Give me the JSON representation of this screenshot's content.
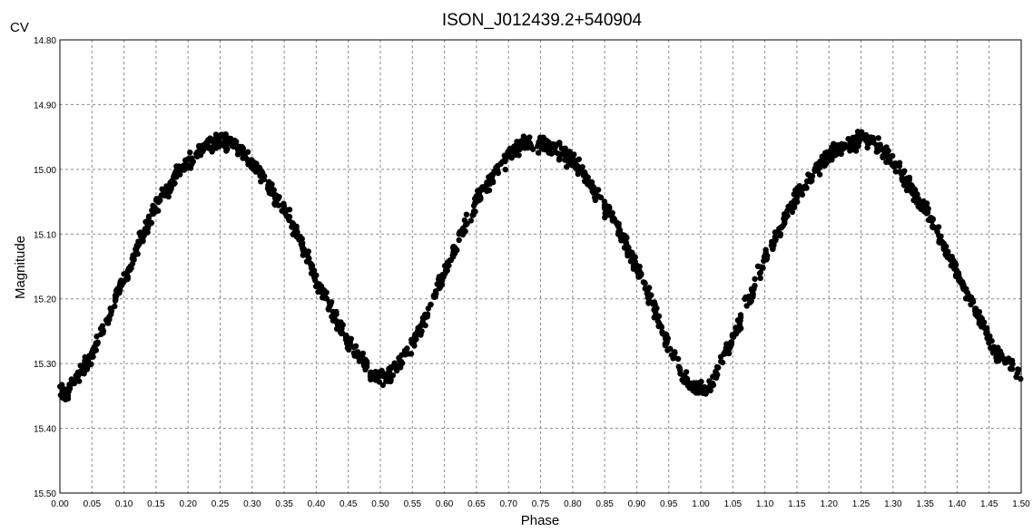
{
  "chart_data": {
    "type": "scatter",
    "title": "ISON_J012439.2+540904",
    "band_label": "CV",
    "xlabel": "Phase",
    "ylabel": "Magnitude",
    "xlim": [
      0.0,
      1.5
    ],
    "ylim": [
      14.8,
      15.5
    ],
    "y_inverted": true,
    "grid": true,
    "x_ticks": [
      "0.00",
      "0.05",
      "0.10",
      "0.15",
      "0.20",
      "0.25",
      "0.30",
      "0.35",
      "0.40",
      "0.45",
      "0.50",
      "0.55",
      "0.60",
      "0.65",
      "0.70",
      "0.75",
      "0.80",
      "0.85",
      "0.90",
      "0.95",
      "1.00",
      "1.05",
      "1.10",
      "1.15",
      "1.20",
      "1.25",
      "1.30",
      "1.35",
      "1.40",
      "1.45",
      "1.50"
    ],
    "y_ticks": [
      "14.80",
      "14.90",
      "15.00",
      "15.10",
      "15.20",
      "15.30",
      "15.40",
      "15.50"
    ],
    "marker_color": "#000000",
    "series": [
      {
        "light_curve": [
          [
            0.0,
            15.34
          ],
          [
            0.01,
            15.35
          ],
          [
            0.02,
            15.33
          ],
          [
            0.03,
            15.32
          ],
          [
            0.04,
            15.3
          ],
          [
            0.05,
            15.29
          ],
          [
            0.06,
            15.26
          ],
          [
            0.07,
            15.24
          ],
          [
            0.08,
            15.22
          ],
          [
            0.09,
            15.19
          ],
          [
            0.1,
            15.17
          ],
          [
            0.11,
            15.15
          ],
          [
            0.12,
            15.12
          ],
          [
            0.13,
            15.1
          ],
          [
            0.14,
            15.08
          ],
          [
            0.15,
            15.06
          ],
          [
            0.16,
            15.04
          ],
          [
            0.17,
            15.03
          ],
          [
            0.18,
            15.01
          ],
          [
            0.19,
            15.0
          ],
          [
            0.2,
            14.99
          ],
          [
            0.21,
            14.98
          ],
          [
            0.22,
            14.97
          ],
          [
            0.23,
            14.96
          ],
          [
            0.24,
            14.96
          ],
          [
            0.25,
            14.95
          ],
          [
            0.26,
            14.96
          ],
          [
            0.27,
            14.96
          ],
          [
            0.28,
            14.97
          ],
          [
            0.29,
            14.98
          ],
          [
            0.3,
            14.99
          ],
          [
            0.31,
            15.0
          ],
          [
            0.32,
            15.02
          ],
          [
            0.33,
            15.03
          ],
          [
            0.34,
            15.05
          ],
          [
            0.35,
            15.06
          ],
          [
            0.36,
            15.08
          ],
          [
            0.37,
            15.1
          ],
          [
            0.38,
            15.12
          ],
          [
            0.39,
            15.14
          ],
          [
            0.4,
            15.17
          ],
          [
            0.41,
            15.19
          ],
          [
            0.42,
            15.21
          ],
          [
            0.43,
            15.23
          ],
          [
            0.44,
            15.25
          ],
          [
            0.45,
            15.27
          ],
          [
            0.46,
            15.28
          ],
          [
            0.47,
            15.29
          ],
          [
            0.48,
            15.31
          ],
          [
            0.49,
            15.32
          ],
          [
            0.5,
            15.32
          ],
          [
            0.51,
            15.32
          ],
          [
            0.52,
            15.31
          ],
          [
            0.53,
            15.3
          ],
          [
            0.54,
            15.28
          ],
          [
            0.55,
            15.27
          ],
          [
            0.56,
            15.25
          ],
          [
            0.57,
            15.23
          ],
          [
            0.58,
            15.21
          ],
          [
            0.59,
            15.18
          ],
          [
            0.6,
            15.16
          ],
          [
            0.61,
            15.14
          ],
          [
            0.62,
            15.11
          ],
          [
            0.63,
            15.09
          ],
          [
            0.64,
            15.07
          ],
          [
            0.65,
            15.05
          ],
          [
            0.66,
            15.03
          ],
          [
            0.67,
            15.02
          ],
          [
            0.68,
            15.0
          ],
          [
            0.69,
            14.99
          ],
          [
            0.7,
            14.98
          ],
          [
            0.71,
            14.97
          ],
          [
            0.72,
            14.96
          ],
          [
            0.73,
            14.96
          ],
          [
            0.74,
            14.96
          ],
          [
            0.75,
            14.96
          ],
          [
            0.76,
            14.96
          ],
          [
            0.77,
            14.97
          ],
          [
            0.78,
            14.97
          ],
          [
            0.79,
            14.98
          ],
          [
            0.8,
            14.99
          ],
          [
            0.81,
            15.0
          ],
          [
            0.82,
            15.01
          ],
          [
            0.83,
            15.03
          ],
          [
            0.84,
            15.04
          ],
          [
            0.85,
            15.06
          ],
          [
            0.86,
            15.07
          ],
          [
            0.87,
            15.09
          ],
          [
            0.88,
            15.11
          ],
          [
            0.89,
            15.13
          ],
          [
            0.9,
            15.15
          ],
          [
            0.91,
            15.17
          ],
          [
            0.92,
            15.2
          ],
          [
            0.93,
            15.22
          ],
          [
            0.94,
            15.25
          ],
          [
            0.95,
            15.27
          ],
          [
            0.96,
            15.29
          ],
          [
            0.97,
            15.31
          ],
          [
            0.98,
            15.33
          ],
          [
            0.99,
            15.34
          ],
          [
            1.0,
            15.34
          ],
          [
            1.01,
            15.34
          ],
          [
            1.02,
            15.33
          ],
          [
            1.03,
            15.3
          ],
          [
            1.04,
            15.28
          ],
          [
            1.05,
            15.26
          ],
          [
            1.06,
            15.24
          ],
          [
            1.07,
            15.21
          ],
          [
            1.08,
            15.19
          ],
          [
            1.09,
            15.16
          ],
          [
            1.1,
            15.14
          ],
          [
            1.11,
            15.12
          ],
          [
            1.12,
            15.1
          ],
          [
            1.13,
            15.08
          ],
          [
            1.14,
            15.06
          ],
          [
            1.15,
            15.04
          ],
          [
            1.16,
            15.03
          ],
          [
            1.17,
            15.02
          ],
          [
            1.18,
            15.0
          ],
          [
            1.19,
            14.99
          ],
          [
            1.2,
            14.98
          ],
          [
            1.21,
            14.97
          ],
          [
            1.22,
            14.97
          ],
          [
            1.23,
            14.96
          ],
          [
            1.24,
            14.96
          ],
          [
            1.25,
            14.95
          ],
          [
            1.26,
            14.96
          ],
          [
            1.27,
            14.96
          ],
          [
            1.28,
            14.97
          ],
          [
            1.29,
            14.98
          ],
          [
            1.3,
            14.99
          ],
          [
            1.31,
            15.0
          ],
          [
            1.32,
            15.02
          ],
          [
            1.33,
            15.03
          ],
          [
            1.34,
            15.05
          ],
          [
            1.35,
            15.06
          ],
          [
            1.36,
            15.08
          ],
          [
            1.37,
            15.1
          ],
          [
            1.38,
            15.12
          ],
          [
            1.39,
            15.14
          ],
          [
            1.4,
            15.16
          ],
          [
            1.41,
            15.18
          ],
          [
            1.42,
            15.2
          ],
          [
            1.43,
            15.22
          ],
          [
            1.44,
            15.24
          ],
          [
            1.45,
            15.26
          ],
          [
            1.46,
            15.28
          ],
          [
            1.47,
            15.29
          ],
          [
            1.48,
            15.3
          ],
          [
            1.49,
            15.31
          ],
          [
            1.5,
            15.32
          ]
        ]
      }
    ]
  }
}
